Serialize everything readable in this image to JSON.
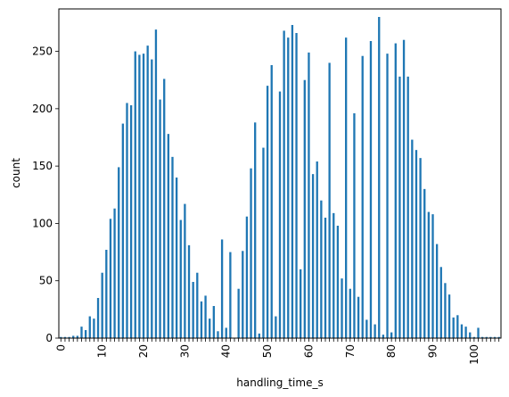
{
  "chart_data": {
    "type": "bar",
    "xlabel": "handling_time_s",
    "ylabel": "count",
    "ylim": [
      0,
      287
    ],
    "yticks": [
      0,
      50,
      100,
      150,
      200,
      250
    ],
    "xtick_labels": [
      "0",
      "10",
      "20",
      "30",
      "40",
      "50",
      "60",
      "70",
      "80",
      "90",
      "100"
    ],
    "bar_color": "#1f77b4",
    "grid": false,
    "categories": [
      0,
      1,
      2,
      3,
      4,
      5,
      6,
      7,
      8,
      9,
      10,
      11,
      12,
      13,
      14,
      15,
      16,
      17,
      18,
      19,
      20,
      21,
      22,
      23,
      24,
      25,
      26,
      27,
      28,
      29,
      30,
      31,
      32,
      33,
      34,
      35,
      36,
      37,
      38,
      39,
      40,
      41,
      42,
      43,
      44,
      45,
      46,
      47,
      48,
      49,
      50,
      51,
      52,
      53,
      54,
      55,
      56,
      57,
      58,
      59,
      60,
      61,
      62,
      63,
      64,
      65,
      66,
      67,
      68,
      69,
      70,
      71,
      72,
      73,
      74,
      75,
      76,
      77,
      78,
      79,
      80,
      81,
      82,
      83,
      84,
      85,
      86,
      87,
      88,
      89,
      90,
      91,
      92,
      93,
      94,
      95,
      96,
      97,
      98,
      99,
      100,
      101,
      102,
      103,
      104,
      105,
      106
    ],
    "values": [
      1,
      1,
      1,
      2,
      2,
      10,
      7,
      19,
      17,
      35,
      57,
      77,
      104,
      113,
      149,
      187,
      205,
      203,
      250,
      247,
      248,
      255,
      243,
      269,
      208,
      226,
      178,
      158,
      140,
      103,
      117,
      81,
      49,
      57,
      32,
      37,
      17,
      28,
      6,
      86,
      9,
      75,
      0,
      43,
      76,
      106,
      148,
      188,
      4,
      166,
      220,
      238,
      19,
      215,
      268,
      262,
      273,
      266,
      60,
      225,
      249,
      143,
      154,
      120,
      105,
      240,
      109,
      98,
      52,
      262,
      43,
      196,
      36,
      246,
      16,
      259,
      12,
      280,
      3,
      248,
      5,
      257,
      228,
      260,
      228,
      173,
      164,
      157,
      130,
      110,
      108,
      82,
      62,
      48,
      38,
      18,
      20,
      12,
      10,
      5,
      1,
      9,
      1,
      1,
      1,
      1,
      1
    ]
  }
}
